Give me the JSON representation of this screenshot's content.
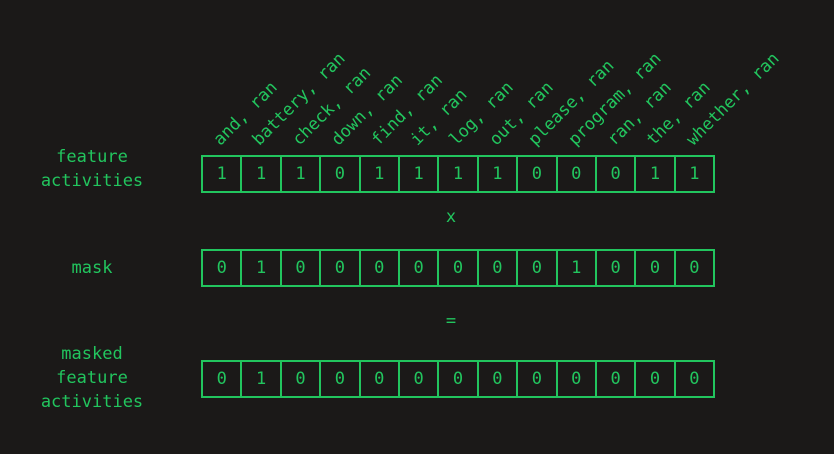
{
  "columns": [
    "and, ran",
    "battery, ran",
    "check, ran",
    "down, ran",
    "find, ran",
    "it, ran",
    "log, ran",
    "out, ran",
    "please, ran",
    "program, ran",
    "ran, ran",
    "the, ran",
    "whether, ran"
  ],
  "rows": [
    {
      "label_lines": [
        "feature",
        "activities"
      ],
      "values": [
        "1",
        "1",
        "1",
        "0",
        "1",
        "1",
        "1",
        "1",
        "0",
        "0",
        "0",
        "1",
        "1"
      ]
    },
    {
      "label_lines": [
        "mask"
      ],
      "values": [
        "0",
        "1",
        "0",
        "0",
        "0",
        "0",
        "0",
        "0",
        "0",
        "1",
        "0",
        "0",
        "0"
      ]
    },
    {
      "label_lines": [
        "masked",
        "feature",
        "activities"
      ],
      "values": [
        "0",
        "1",
        "0",
        "0",
        "0",
        "0",
        "0",
        "0",
        "0",
        "0",
        "0",
        "0",
        "0"
      ]
    }
  ],
  "operators": {
    "multiply": "x",
    "equals": "="
  },
  "colors": {
    "background": "#1b1918",
    "accent": "#22c55e"
  }
}
